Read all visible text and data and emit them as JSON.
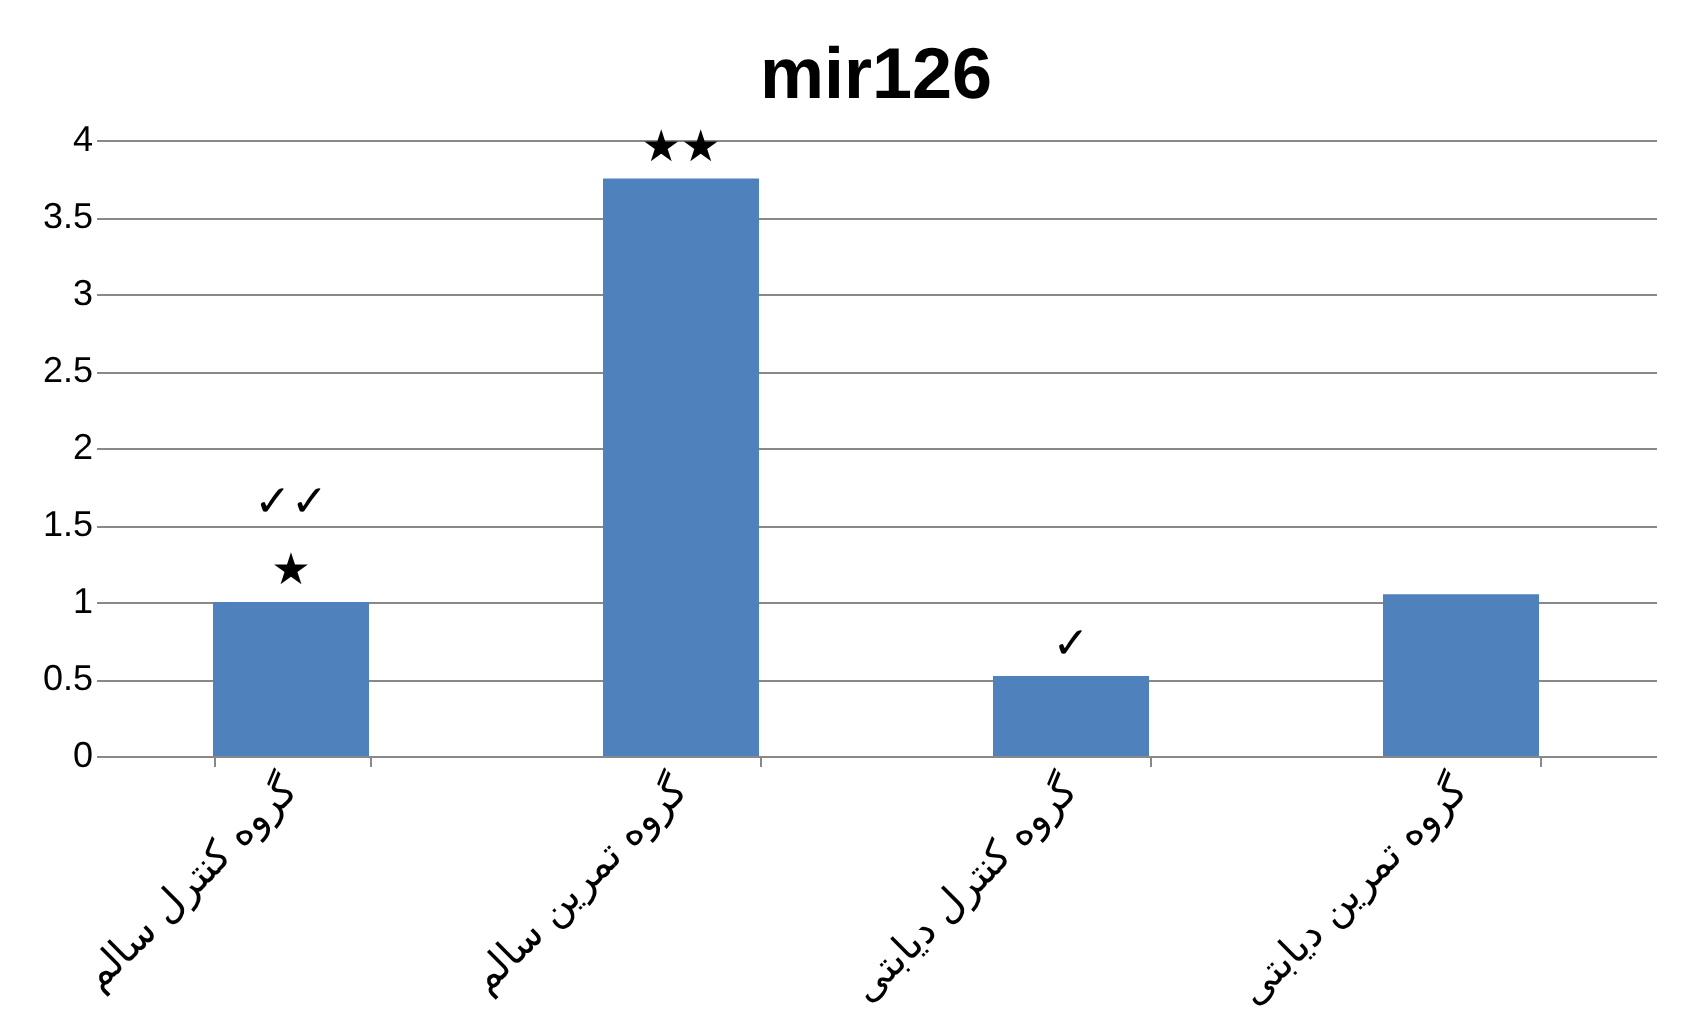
{
  "chart_data": {
    "type": "bar",
    "title": "mir126",
    "categories": [
      "گروه کنترل سالم",
      "گروه تمرین سالم",
      "گروه کنترل دیابتی",
      "گروه تمرین دیابتی"
    ],
    "values": [
      1.0,
      3.75,
      0.52,
      1.05
    ],
    "color": "#4f81bd",
    "ylim": [
      0,
      4
    ],
    "yticks": [
      0,
      0.5,
      1,
      1.5,
      2,
      2.5,
      3,
      3.5,
      4
    ],
    "grid": "y",
    "annotations": [
      {
        "text": "★",
        "x": "گروه کنترل سالم",
        "y": 1.0
      },
      {
        "text": "✓✓",
        "x": "گروه کنترل سالم",
        "y": 1.0
      },
      {
        "text": "★★",
        "x": "گروه تمرین سالم",
        "y": 3.75
      },
      {
        "text": "✓",
        "x": "گروه کنترل دیابتی",
        "y": 0.52
      }
    ]
  }
}
